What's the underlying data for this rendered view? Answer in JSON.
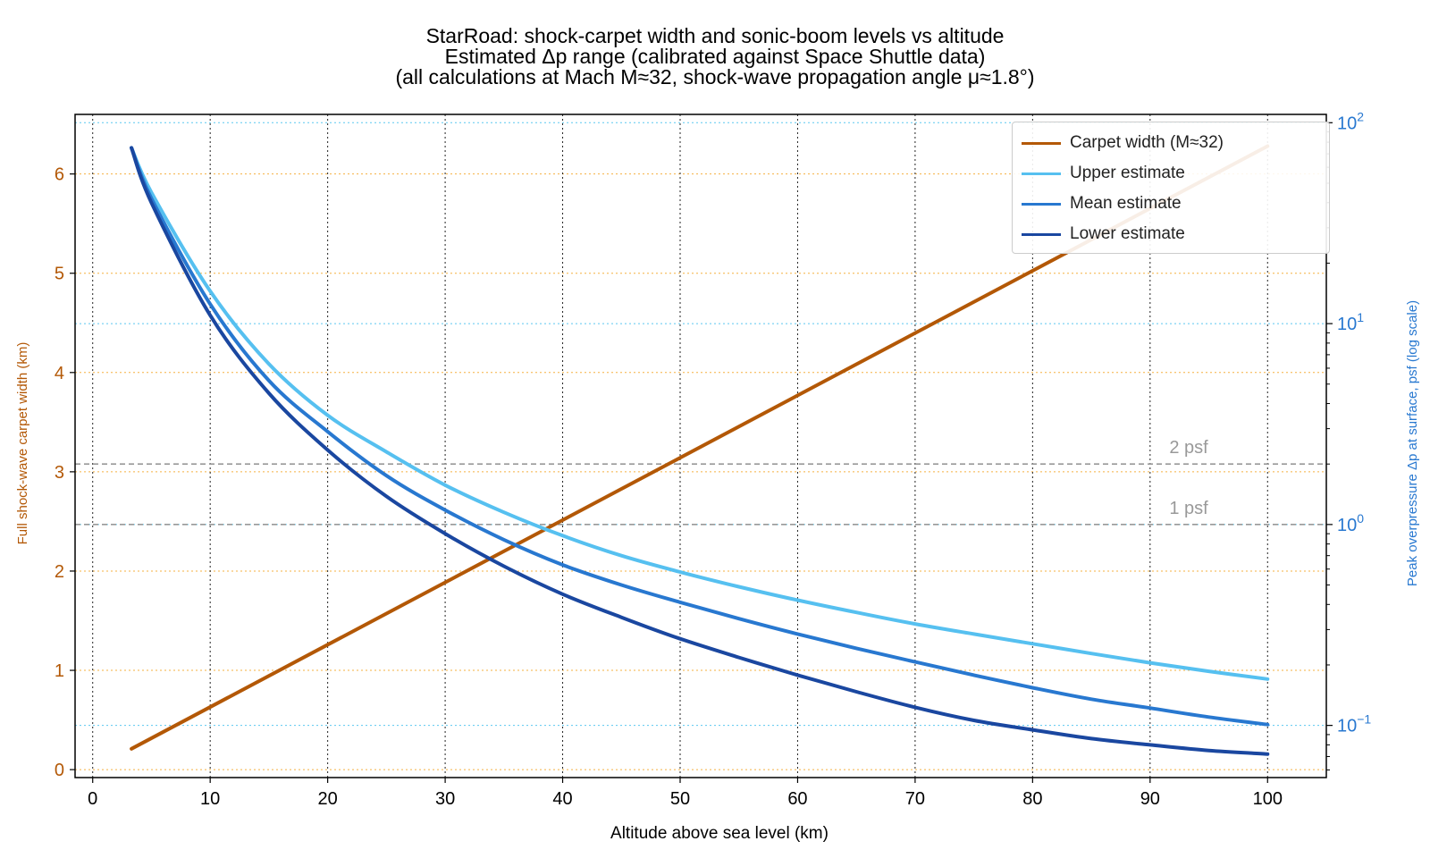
{
  "chart_data": {
    "type": "line",
    "title": "StarRoad: shock-carpet width and sonic-boom levels vs altitude",
    "subtitle_lines": [
      "Estimated Δp range (calibrated against Space Shuttle data)",
      "(all calculations at Mach M≈32, shock-wave propagation angle μ≈1.8°)"
    ],
    "xlabel": "Altitude above sea level (km)",
    "ylabel_left": "Full shock-wave carpet width (km)",
    "ylabel_right": "Peak overpressure Δp at surface, psf (log scale)",
    "xlim": [
      -1.5,
      105
    ],
    "ylim_left": [
      -0.08,
      6.6
    ],
    "ylim_right_log": [
      0.055,
      110
    ],
    "y_right_scale": "log",
    "x_ticks": [
      0,
      10,
      20,
      30,
      40,
      50,
      60,
      70,
      80,
      90,
      100
    ],
    "y_left_ticks": [
      0,
      1,
      2,
      3,
      4,
      5,
      6
    ],
    "y_right_ticks": [
      {
        "value": 0.1,
        "base": "10",
        "exp": "−1"
      },
      {
        "value": 1,
        "base": "10",
        "exp": "0"
      },
      {
        "value": 10,
        "base": "10",
        "exp": "1"
      },
      {
        "value": 100,
        "base": "10",
        "exp": "2"
      }
    ],
    "grid": true,
    "legend_position": "top-right",
    "series": [
      {
        "name": "Carpet width (M≈32)",
        "axis": "left",
        "color": "#b35806",
        "x": [
          3.3,
          100
        ],
        "y": [
          0.21,
          6.28
        ]
      },
      {
        "name": "Upper estimate",
        "axis": "right",
        "color": "#56c0f0",
        "x": [
          3.3,
          5,
          10,
          15,
          20,
          25,
          30,
          35,
          40,
          45,
          50,
          55,
          60,
          65,
          70,
          75,
          80,
          85,
          90,
          95,
          100
        ],
        "y": [
          75,
          45,
          14.5,
          6.3,
          3.5,
          2.3,
          1.57,
          1.15,
          0.88,
          0.7,
          0.58,
          0.49,
          0.42,
          0.365,
          0.32,
          0.285,
          0.255,
          0.228,
          0.205,
          0.186,
          0.17
        ]
      },
      {
        "name": "Mean estimate",
        "axis": "right",
        "color": "#2878d0",
        "x": [
          3.3,
          5,
          10,
          15,
          20,
          25,
          30,
          35,
          40,
          45,
          50,
          55,
          60,
          65,
          70,
          75,
          80,
          85,
          90,
          95,
          100
        ],
        "y": [
          75,
          42,
          12.5,
          5.2,
          2.9,
          1.75,
          1.18,
          0.84,
          0.63,
          0.5,
          0.41,
          0.34,
          0.285,
          0.242,
          0.207,
          0.178,
          0.154,
          0.135,
          0.122,
          0.11,
          0.101
        ]
      },
      {
        "name": "Lower estimate",
        "axis": "right",
        "color": "#1a47a0",
        "x": [
          3.3,
          5,
          10,
          15,
          20,
          25,
          30,
          35,
          40,
          45,
          50,
          55,
          60,
          65,
          70,
          75,
          80,
          85,
          90,
          95,
          100
        ],
        "y": [
          75,
          40,
          11,
          4.5,
          2.35,
          1.38,
          0.9,
          0.62,
          0.45,
          0.345,
          0.27,
          0.218,
          0.178,
          0.147,
          0.123,
          0.106,
          0.095,
          0.086,
          0.08,
          0.075,
          0.072
        ]
      }
    ],
    "reference_lines": [
      {
        "label": "2 psf",
        "value": 2,
        "color": "#999999",
        "style": "dashed"
      },
      {
        "label": "1 psf",
        "value": 1,
        "color": "#999999",
        "style": "dashed"
      }
    ],
    "colors": {
      "left_axis": "#b35806",
      "right_axis": "#2878d0",
      "grid_left": "#f5b041",
      "grid_right": "#5bc8f0",
      "grid_x": "#222222"
    }
  }
}
